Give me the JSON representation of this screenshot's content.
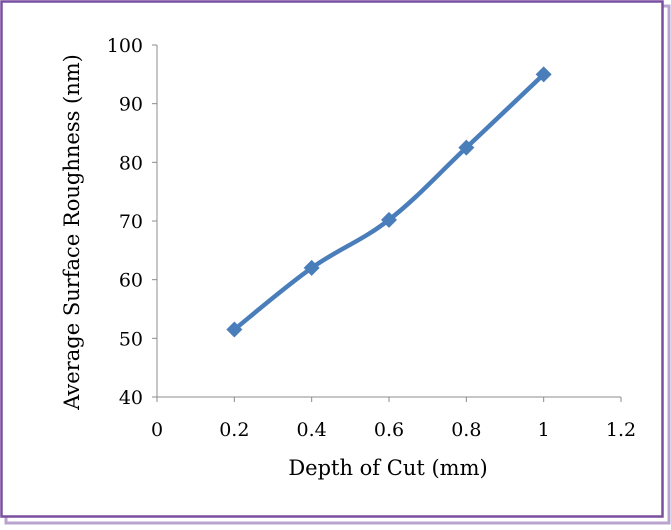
{
  "colors": {
    "border": "#7a4fa0",
    "shadow": "#b9a3cf",
    "series": "#4a7ebb",
    "axis": "#8c8c8c"
  },
  "chart_data": {
    "type": "line",
    "xlabel": "Depth of Cut (mm)",
    "ylabel": "Average Surface Roughness (nm)",
    "xlim": [
      0,
      1.2
    ],
    "ylim": [
      40,
      100
    ],
    "xticks": [
      "0",
      "0.2",
      "0.4",
      "0.6",
      "0.8",
      "1",
      "1.2"
    ],
    "yticks": [
      "40",
      "50",
      "60",
      "70",
      "80",
      "90",
      "100"
    ],
    "grid": false,
    "legend": "none",
    "marker": "diamond",
    "smooth": true,
    "series": [
      {
        "x": [
          0.2,
          0.4,
          0.6,
          0.8,
          1.0
        ],
        "y": [
          51.5,
          62,
          70.2,
          82.5,
          95
        ]
      }
    ]
  }
}
